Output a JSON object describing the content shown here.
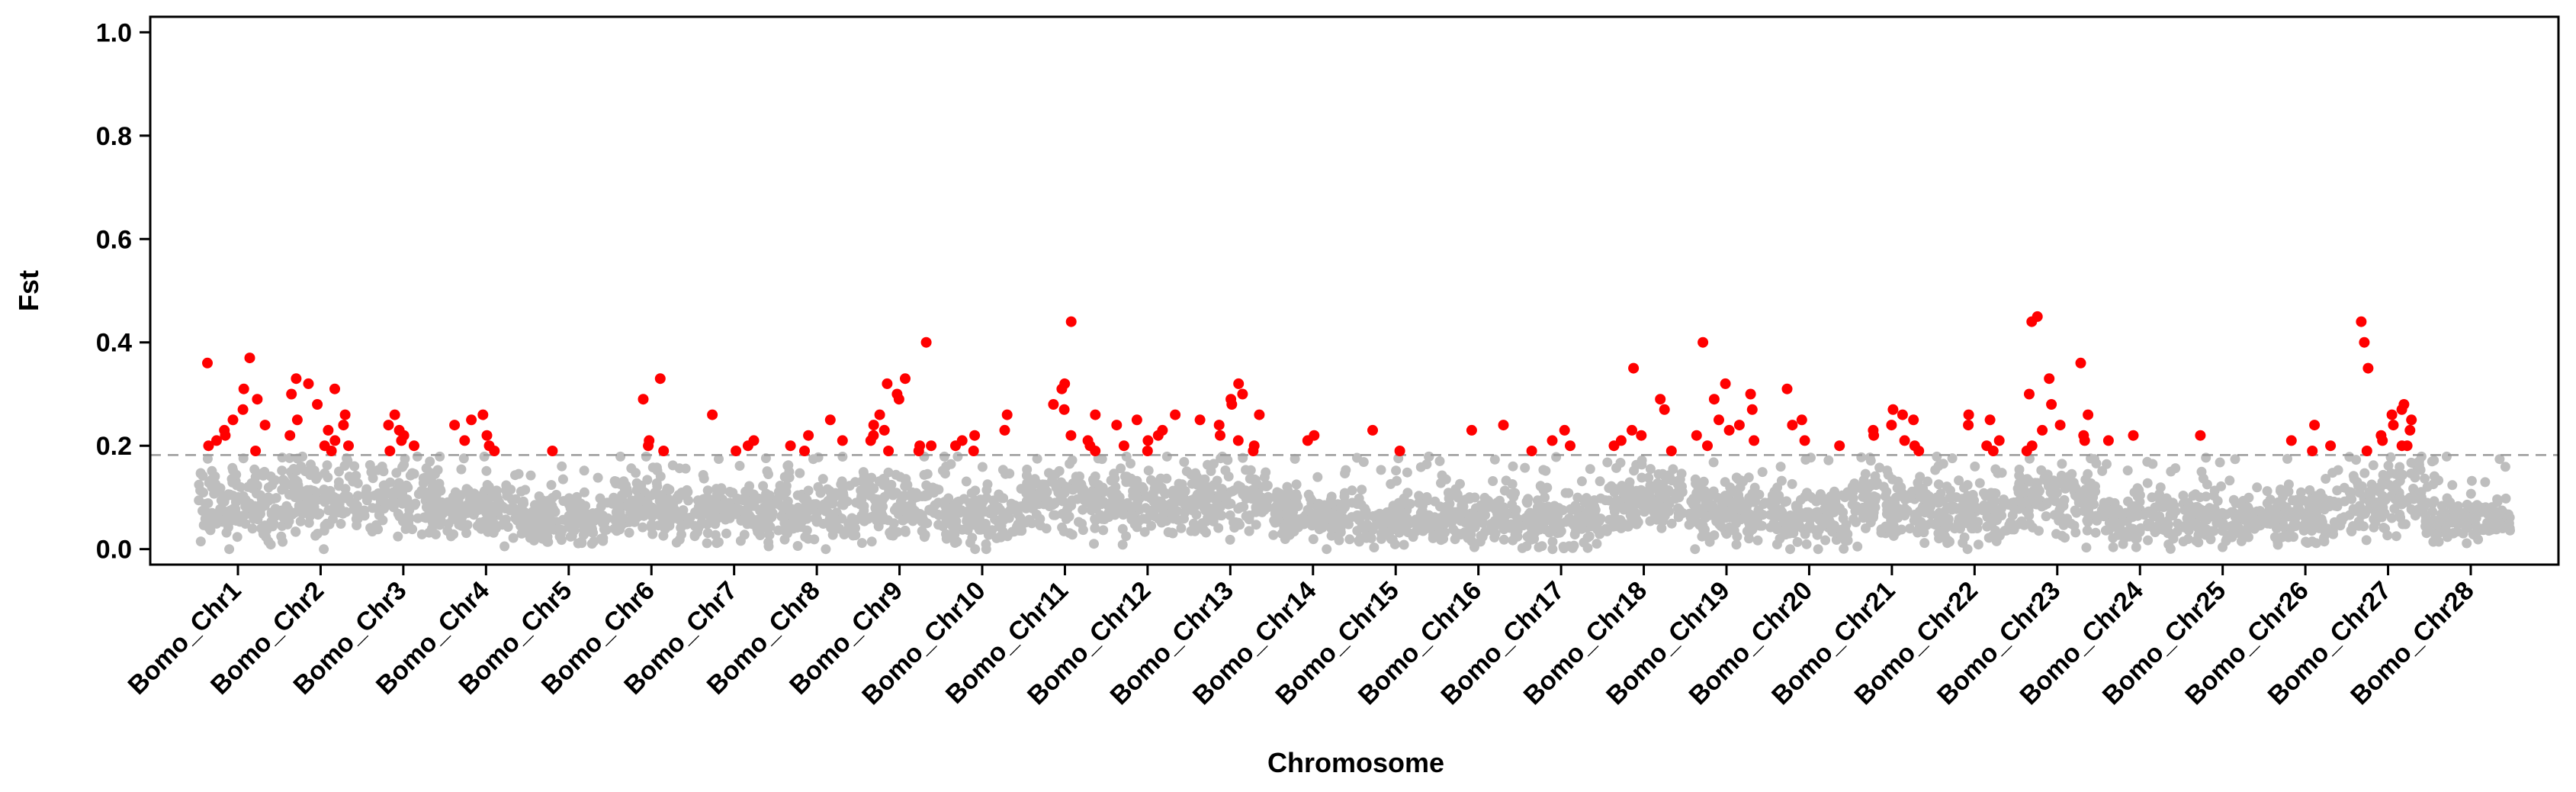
{
  "chart_data": {
    "type": "scatter",
    "subtype": "manhattan",
    "title": "",
    "xlabel": "Chromosome",
    "ylabel": "Fst",
    "ylim": [
      -0.03,
      1.03
    ],
    "yticks": [
      0.0,
      0.2,
      0.4,
      0.6,
      0.8,
      1.0
    ],
    "ytick_labels": [
      "0.0",
      "0.2",
      "0.4",
      "0.6",
      "0.8",
      "1.0"
    ],
    "threshold": 0.182,
    "colors": {
      "background_points": "#bebebe",
      "significant_points": "#ff0000",
      "threshold_line": "#9a9a9a",
      "axis": "#000000"
    },
    "chromosomes": [
      {
        "name": "Bomo_Chr1",
        "base": 0.085,
        "spread": 0.06,
        "peaks": [
          0.37,
          0.36,
          0.31,
          0.29,
          0.27,
          0.25,
          0.24,
          0.23,
          0.22,
          0.21,
          0.2,
          0.19
        ]
      },
      {
        "name": "Bomo_Chr2",
        "base": 0.095,
        "spread": 0.06,
        "peaks": [
          0.33,
          0.32,
          0.31,
          0.3,
          0.28,
          0.26,
          0.25,
          0.24,
          0.23,
          0.22,
          0.21,
          0.2,
          0.2,
          0.19
        ]
      },
      {
        "name": "Bomo_Chr3",
        "base": 0.085,
        "spread": 0.055,
        "peaks": [
          0.26,
          0.24,
          0.23,
          0.22,
          0.21,
          0.2,
          0.19
        ]
      },
      {
        "name": "Bomo_Chr4",
        "base": 0.07,
        "spread": 0.05,
        "peaks": [
          0.26,
          0.25,
          0.24,
          0.22,
          0.21,
          0.2,
          0.19
        ]
      },
      {
        "name": "Bomo_Chr5",
        "base": 0.055,
        "spread": 0.04,
        "peaks": [
          0.19
        ]
      },
      {
        "name": "Bomo_Chr6",
        "base": 0.08,
        "spread": 0.055,
        "peaks": [
          0.33,
          0.29,
          0.21,
          0.2,
          0.19
        ]
      },
      {
        "name": "Bomo_Chr7",
        "base": 0.07,
        "spread": 0.05,
        "peaks": [
          0.26,
          0.21,
          0.2,
          0.19
        ]
      },
      {
        "name": "Bomo_Chr8",
        "base": 0.08,
        "spread": 0.055,
        "peaks": [
          0.25,
          0.22,
          0.21,
          0.2,
          0.19
        ]
      },
      {
        "name": "Bomo_Chr9",
        "base": 0.08,
        "spread": 0.06,
        "peaks": [
          0.4,
          0.33,
          0.32,
          0.3,
          0.29,
          0.26,
          0.24,
          0.23,
          0.22,
          0.21,
          0.2,
          0.2,
          0.19,
          0.19
        ]
      },
      {
        "name": "Bomo_Chr10",
        "base": 0.06,
        "spread": 0.045,
        "peaks": [
          0.26,
          0.23,
          0.22,
          0.21,
          0.2,
          0.19
        ]
      },
      {
        "name": "Bomo_Chr11",
        "base": 0.09,
        "spread": 0.055,
        "peaks": [
          0.44,
          0.32,
          0.31,
          0.28,
          0.27,
          0.26,
          0.22,
          0.21,
          0.2,
          0.19
        ]
      },
      {
        "name": "Bomo_Chr12",
        "base": 0.09,
        "spread": 0.055,
        "peaks": [
          0.26,
          0.25,
          0.24,
          0.23,
          0.22,
          0.21,
          0.2,
          0.19
        ]
      },
      {
        "name": "Bomo_Chr13",
        "base": 0.095,
        "spread": 0.06,
        "peaks": [
          0.32,
          0.3,
          0.29,
          0.28,
          0.26,
          0.25,
          0.24,
          0.22,
          0.21,
          0.2,
          0.19
        ]
      },
      {
        "name": "Bomo_Chr14",
        "base": 0.065,
        "spread": 0.045,
        "peaks": [
          0.22,
          0.21
        ]
      },
      {
        "name": "Bomo_Chr15",
        "base": 0.055,
        "spread": 0.04,
        "peaks": [
          0.23,
          0.19
        ]
      },
      {
        "name": "Bomo_Chr16",
        "base": 0.06,
        "spread": 0.045,
        "peaks": [
          0.24,
          0.23
        ]
      },
      {
        "name": "Bomo_Chr17",
        "base": 0.055,
        "spread": 0.045,
        "peaks": [
          0.23,
          0.21,
          0.2,
          0.19
        ]
      },
      {
        "name": "Bomo_Chr18",
        "base": 0.09,
        "spread": 0.055,
        "peaks": [
          0.35,
          0.29,
          0.27,
          0.23,
          0.22,
          0.21,
          0.2,
          0.19
        ]
      },
      {
        "name": "Bomo_Chr19",
        "base": 0.075,
        "spread": 0.055,
        "peaks": [
          0.4,
          0.32,
          0.3,
          0.29,
          0.27,
          0.25,
          0.24,
          0.23,
          0.22,
          0.21,
          0.2
        ]
      },
      {
        "name": "Bomo_Chr20",
        "base": 0.065,
        "spread": 0.05,
        "peaks": [
          0.31,
          0.25,
          0.24,
          0.21,
          0.2
        ]
      },
      {
        "name": "Bomo_Chr21",
        "base": 0.08,
        "spread": 0.055,
        "peaks": [
          0.27,
          0.26,
          0.25,
          0.24,
          0.23,
          0.22,
          0.21,
          0.2,
          0.19
        ]
      },
      {
        "name": "Bomo_Chr22",
        "base": 0.065,
        "spread": 0.05,
        "peaks": [
          0.26,
          0.25,
          0.24,
          0.21,
          0.2,
          0.19
        ]
      },
      {
        "name": "Bomo_Chr23",
        "base": 0.09,
        "spread": 0.06,
        "peaks": [
          0.45,
          0.44,
          0.36,
          0.33,
          0.3,
          0.28,
          0.26,
          0.24,
          0.23,
          0.22,
          0.21,
          0.2,
          0.19
        ]
      },
      {
        "name": "Bomo_Chr24",
        "base": 0.06,
        "spread": 0.045,
        "peaks": [
          0.22,
          0.21
        ]
      },
      {
        "name": "Bomo_Chr25",
        "base": 0.055,
        "spread": 0.04,
        "peaks": [
          0.22
        ]
      },
      {
        "name": "Bomo_Chr26",
        "base": 0.065,
        "spread": 0.05,
        "peaks": [
          0.24,
          0.21,
          0.2,
          0.19
        ]
      },
      {
        "name": "Bomo_Chr27",
        "base": 0.095,
        "spread": 0.06,
        "peaks": [
          0.44,
          0.4,
          0.35,
          0.28,
          0.27,
          0.26,
          0.25,
          0.24,
          0.23,
          0.22,
          0.21,
          0.2,
          0.2,
          0.19
        ]
      },
      {
        "name": "Bomo_Chr28",
        "base": 0.055,
        "spread": 0.035,
        "peaks": []
      }
    ]
  }
}
